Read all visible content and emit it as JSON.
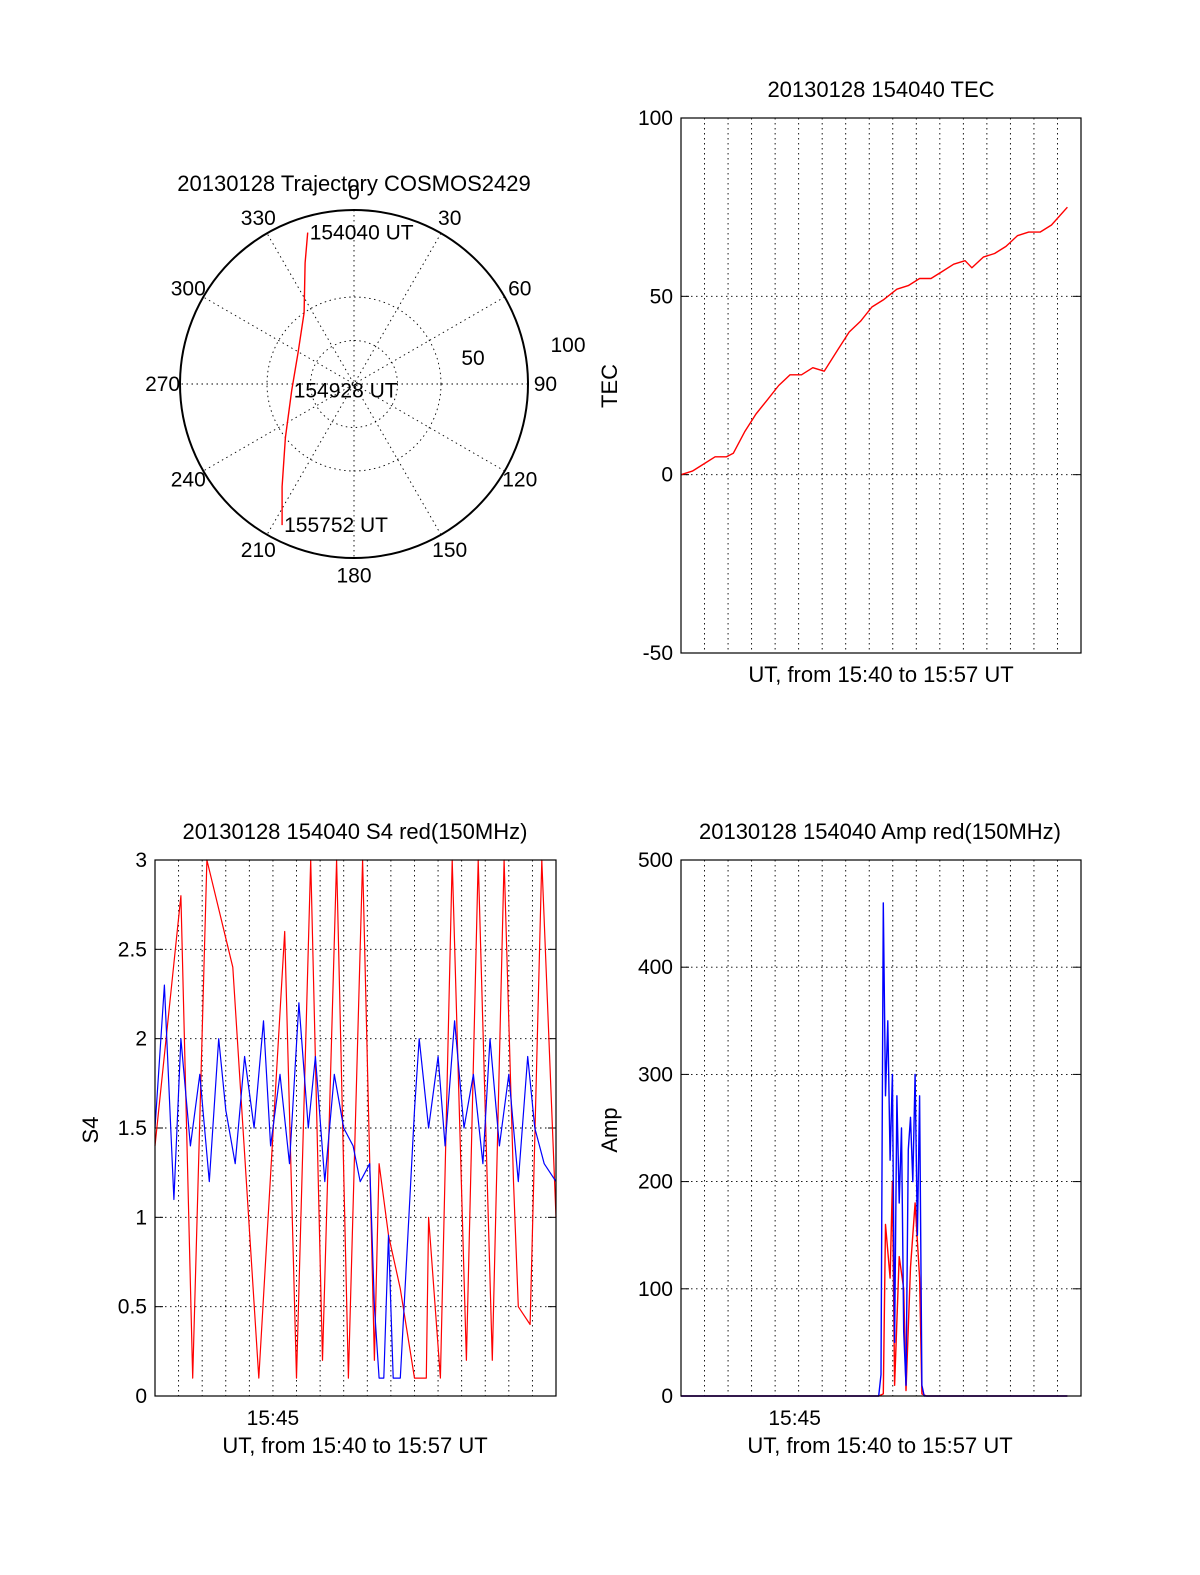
{
  "chart_data": [
    {
      "id": "trajectory",
      "type": "polar",
      "title": "20130128 Trajectory COSMOS2429",
      "radial_range": [
        0,
        100
      ],
      "radial_ticks": [
        "50",
        "100"
      ],
      "angle_labels": [
        "0",
        "30",
        "60",
        "90",
        "120",
        "150",
        "180",
        "210",
        "240",
        "270",
        "300",
        "330"
      ],
      "grid": true,
      "track_color": "#ff0000",
      "track": [
        {
          "azimuth": 343,
          "radius": 91
        },
        {
          "azimuth": 338,
          "radius": 75
        },
        {
          "azimuth": 325,
          "radius": 50
        },
        {
          "azimuth": 300,
          "radius": 37
        },
        {
          "azimuth": 264,
          "radius": 36
        },
        {
          "azimuth": 232,
          "radius": 50
        },
        {
          "azimuth": 215,
          "radius": 72
        },
        {
          "azimuth": 207,
          "radius": 91
        }
      ],
      "annotations": [
        {
          "label": "154040 UT",
          "azimuth": 343,
          "radius": 91
        },
        {
          "label": "154928 UT",
          "azimuth": 264,
          "radius": 36
        },
        {
          "label": "155752 UT",
          "azimuth": 207,
          "radius": 91
        }
      ]
    },
    {
      "id": "tec",
      "type": "line",
      "title": "20130128 154040 TEC",
      "xlabel": "UT, from 15:40 to 15:57 UT",
      "ylabel": "TEC",
      "ylim": [
        -50,
        100
      ],
      "yticks": [
        "100",
        "50",
        "0",
        "-50"
      ],
      "xticks": [],
      "grid": true,
      "series": [
        {
          "color": "#ff0000",
          "x": [
            0.0,
            0.5,
            1.0,
            1.5,
            2.0,
            2.3,
            2.8,
            3.3,
            3.8,
            4.3,
            4.8,
            5.3,
            5.8,
            6.3,
            6.9,
            7.4,
            7.9,
            8.4,
            8.9,
            9.5,
            10.0,
            10.5,
            11.0,
            11.5,
            12.0,
            12.5,
            12.8,
            13.3,
            13.8,
            14.3,
            14.8,
            15.3,
            15.8,
            16.3,
            17.0
          ],
          "values": [
            0,
            1,
            3,
            5,
            5,
            6,
            12,
            17,
            21,
            25,
            28,
            28,
            30,
            29,
            35,
            40,
            43,
            47,
            49,
            52,
            53,
            55,
            55,
            57,
            59,
            60,
            58,
            61,
            62,
            64,
            67,
            68,
            68,
            70,
            75
          ]
        }
      ]
    },
    {
      "id": "s4",
      "type": "line",
      "title": "20130128 154040 S4 red(150MHz)",
      "xlabel": "UT, from 15:40 to 15:57 UT",
      "ylabel": "S4",
      "ylim": [
        0,
        3
      ],
      "yticks": [
        "3",
        "2.5",
        "2",
        "1.5",
        "1",
        "0.5",
        "0"
      ],
      "xticks": [
        {
          "x": 5.0,
          "label": "15:45"
        }
      ],
      "grid": true,
      "series": [
        {
          "color": "#ff0000",
          "x": [
            0.0,
            1.1,
            1.6,
            2.2,
            3.3,
            4.4,
            5.5,
            6.0,
            6.6,
            7.1,
            7.7,
            8.2,
            8.8,
            9.3,
            9.5,
            9.9,
            10.4,
            11.0,
            11.5,
            11.6,
            12.1,
            12.6,
            13.2,
            13.7,
            14.3,
            14.8,
            15.2,
            15.4,
            15.9,
            16.4,
            17.0
          ],
          "values": [
            1.4,
            2.8,
            0.1,
            3.0,
            2.4,
            0.1,
            2.6,
            0.1,
            3.0,
            0.2,
            3.0,
            0.1,
            3.0,
            0.2,
            1.3,
            0.9,
            0.6,
            0.1,
            0.1,
            1.0,
            0.1,
            3.0,
            0.2,
            3.0,
            0.2,
            3.0,
            1.2,
            0.5,
            0.4,
            3.0,
            1.0
          ]
        },
        {
          "color": "#0000ff",
          "x": [
            0.0,
            0.4,
            0.8,
            1.1,
            1.5,
            1.9,
            2.3,
            2.7,
            3.0,
            3.4,
            3.8,
            4.2,
            4.6,
            4.9,
            5.3,
            5.7,
            6.1,
            6.5,
            6.8,
            7.2,
            7.6,
            8.0,
            8.4,
            8.7,
            9.1,
            9.3,
            9.5,
            9.7,
            9.9,
            10.1,
            10.4,
            10.8,
            11.0,
            11.2,
            11.6,
            12.0,
            12.3,
            12.7,
            13.1,
            13.5,
            13.9,
            14.2,
            14.6,
            15.0,
            15.4,
            15.8,
            16.1,
            16.5,
            17.0
          ],
          "values": [
            1.5,
            2.3,
            1.1,
            2.0,
            1.4,
            1.8,
            1.2,
            2.0,
            1.6,
            1.3,
            1.9,
            1.5,
            2.1,
            1.4,
            1.8,
            1.3,
            2.2,
            1.5,
            1.9,
            1.2,
            1.8,
            1.5,
            1.4,
            1.2,
            1.3,
            0.5,
            0.1,
            0.1,
            0.9,
            0.1,
            0.1,
            1.1,
            1.6,
            2.0,
            1.5,
            1.9,
            1.4,
            2.1,
            1.5,
            1.8,
            1.3,
            2.0,
            1.4,
            1.8,
            1.2,
            1.9,
            1.5,
            1.3,
            1.2
          ]
        }
      ]
    },
    {
      "id": "amp",
      "type": "line",
      "title": "20130128 154040 Amp red(150MHz)",
      "xlabel": "UT, from 15:40 to 15:57 UT",
      "ylabel": "Amp",
      "ylim": [
        0,
        500
      ],
      "yticks": [
        "500",
        "400",
        "300",
        "200",
        "100",
        "0"
      ],
      "xticks": [
        {
          "x": 5.0,
          "label": "15:45"
        }
      ],
      "grid": true,
      "series": [
        {
          "color": "#ff0000",
          "x": [
            0.0,
            8.7,
            8.9,
            9.0,
            9.2,
            9.3,
            9.4,
            9.6,
            9.8,
            9.9,
            10.1,
            10.2,
            10.3,
            10.5,
            10.6,
            10.8,
            17.0
          ],
          "values": [
            0,
            0,
            2,
            160,
            110,
            200,
            10,
            130,
            100,
            5,
            120,
            150,
            180,
            110,
            2,
            0,
            0
          ]
        },
        {
          "color": "#0000ff",
          "x": [
            0.0,
            8.7,
            8.8,
            8.9,
            9.0,
            9.1,
            9.2,
            9.3,
            9.4,
            9.5,
            9.6,
            9.7,
            9.8,
            9.9,
            10.0,
            10.1,
            10.2,
            10.3,
            10.4,
            10.5,
            10.6,
            10.7,
            17.0
          ],
          "values": [
            0,
            0,
            20,
            460,
            280,
            350,
            220,
            300,
            50,
            280,
            180,
            250,
            60,
            10,
            230,
            260,
            200,
            300,
            150,
            280,
            10,
            0,
            0
          ]
        }
      ]
    }
  ]
}
